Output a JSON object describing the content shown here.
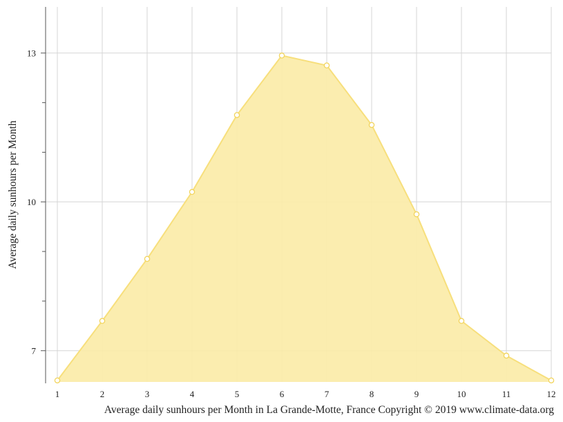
{
  "chart_data": {
    "type": "area",
    "x": [
      1,
      2,
      3,
      4,
      5,
      6,
      7,
      8,
      9,
      10,
      11,
      12
    ],
    "values": [
      6.4,
      7.6,
      8.85,
      10.2,
      11.75,
      12.95,
      12.75,
      11.55,
      9.75,
      7.6,
      6.9,
      6.4
    ],
    "xlabel": "Average daily sunhours per Month in La Grande-Motte, France Copyright © 2019 www.climate-data.org",
    "ylabel": "Average daily sunhours per Month",
    "xlim": [
      1,
      12
    ],
    "ylim": [
      6.37,
      13.93
    ],
    "x_ticks": [
      1,
      2,
      3,
      4,
      5,
      6,
      7,
      8,
      9,
      10,
      11,
      12
    ],
    "y_tick_labels": [
      7,
      10,
      13
    ],
    "y_minor_ticks": [
      8,
      9,
      11,
      12
    ],
    "grid": true,
    "fill_color": "#fbeca8",
    "line_color": "#f7df7c",
    "marker_stroke": "#f2d45c"
  }
}
